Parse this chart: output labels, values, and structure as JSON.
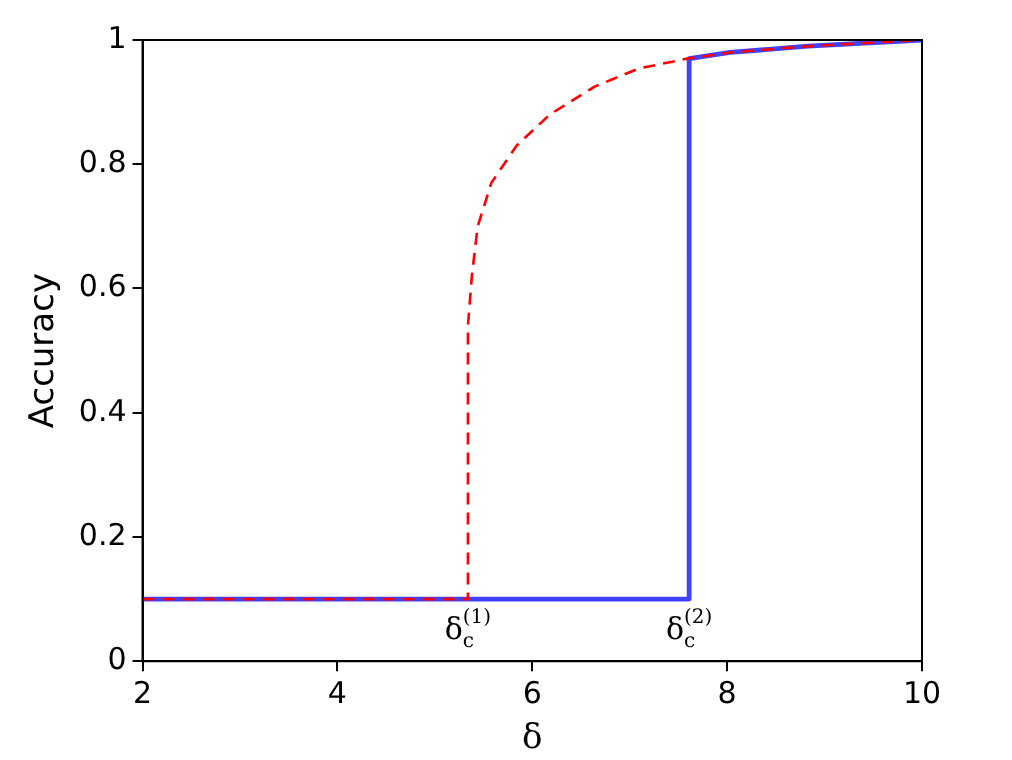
{
  "chart_data": {
    "type": "line",
    "xlabel": "δ",
    "ylabel": "Accuracy",
    "xlim": [
      2,
      10
    ],
    "xticks": [
      2,
      4,
      6,
      8,
      10
    ],
    "ylim": [
      0,
      1
    ],
    "yticks": [
      0,
      0.2,
      0.4,
      0.6,
      0.8,
      1
    ],
    "grid": false,
    "legend": false,
    "marker": "none",
    "series": [
      {
        "color": "#ff0000",
        "line_style": "dashed",
        "x": [
          2,
          5.34,
          5.34,
          5.38,
          5.44,
          5.58,
          5.84,
          6.18,
          6.64,
          7.09,
          7.59,
          8.03,
          8.83,
          10
        ],
        "values": [
          0.1,
          0.1,
          0.54,
          0.62,
          0.7,
          0.77,
          0.83,
          0.88,
          0.925,
          0.954,
          0.97,
          0.98,
          0.99,
          1
        ]
      },
      {
        "color": "#4040ff",
        "line_style": "solid",
        "x": [
          2,
          7.61,
          7.61,
          8.03,
          8.83,
          10
        ],
        "values": [
          0.1,
          0.1,
          0.97,
          0.98,
          0.99,
          1
        ]
      }
    ],
    "annotations": [
      {
        "text": "δ$_{c}$$^{(1)}$",
        "x": 5.34,
        "y": 0.1
      },
      {
        "text": "δ$_{c}$$^{(2)}$",
        "x": 7.61,
        "y": 0.1
      }
    ]
  }
}
